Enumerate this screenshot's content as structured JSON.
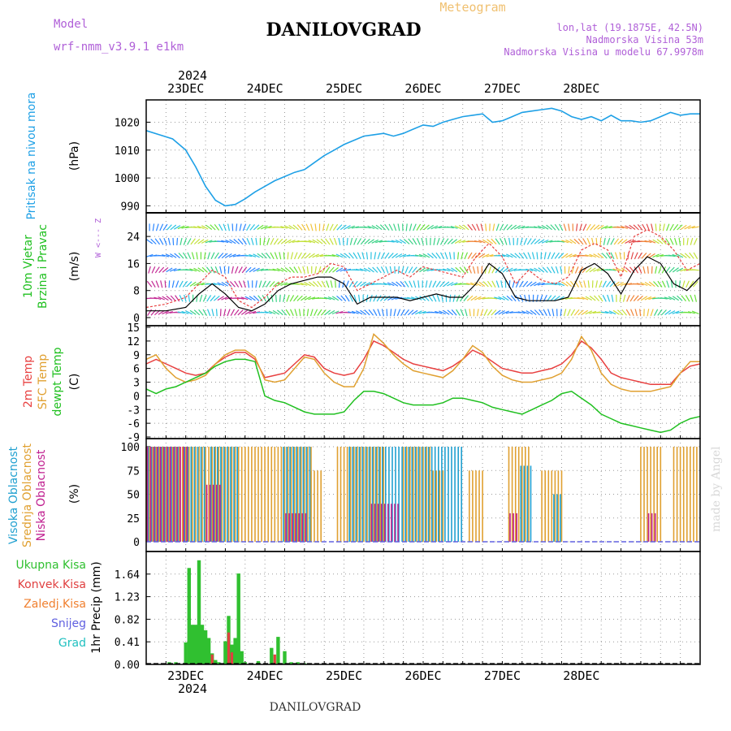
{
  "header": {
    "model_label": "Model",
    "model_name": "wrf-nmm_v3.9.1  e1km",
    "title": "DANILOVGRAD",
    "meteogram_label": "Meteogram",
    "lonlat": "lon,lat (19.1875E, 42.5N)",
    "elevation": "Nadmorska Visina 53m",
    "model_elevation": "Nadmorska Visina u modelu 67.9978m"
  },
  "footer": {
    "station": "DANILOVGRAD",
    "watermark": "made by Angel"
  },
  "time_axis": {
    "year": "2024",
    "dates": [
      "23DEC",
      "24DEC",
      "25DEC",
      "26DEC",
      "27DEC",
      "28DEC"
    ],
    "hour_range": [
      -12,
      156
    ]
  },
  "colors": {
    "pressure": "#1ea0e6",
    "t2m": "#e84040",
    "sfc": "#e0a030",
    "dew": "#20c020",
    "high_cloud": "#20a0d0",
    "mid_cloud": "#e0a030",
    "low_cloud": "#c02090",
    "precip_total": "#30c030",
    "precip_conv": "#e04040",
    "precip_frz": "#f08030",
    "snow": "#6060e0",
    "grad": "#20c0c0",
    "purple_text": "#b060d8",
    "orange_text": "#f0c070"
  },
  "chart_data": [
    {
      "type": "line",
      "panel": "pressure",
      "ylabel": "Pritisak na nivou mora",
      "unit": "(hPa)",
      "yticks": [
        990,
        1000,
        1010,
        1020
      ],
      "ylim": [
        987.5,
        1028
      ],
      "x": [
        -12,
        -8,
        -4,
        0,
        3,
        6,
        9,
        12,
        15,
        18,
        21,
        24,
        27,
        30,
        33,
        36,
        39,
        42,
        45,
        48,
        51,
        54,
        57,
        60,
        63,
        66,
        69,
        72,
        75,
        78,
        81,
        84,
        87,
        90,
        93,
        96,
        99,
        102,
        105,
        108,
        111,
        114,
        117,
        120,
        123,
        126,
        129,
        132,
        135,
        138,
        141,
        144,
        147,
        150,
        153,
        156
      ],
      "y": [
        1017,
        1015.5,
        1014,
        1010,
        1004,
        997,
        992,
        990,
        990.5,
        992.5,
        995,
        997,
        999,
        1000.5,
        1002,
        1003,
        1005.5,
        1008,
        1010,
        1012,
        1013.5,
        1015,
        1015.5,
        1016,
        1015,
        1016,
        1017.5,
        1019,
        1018.5,
        1020,
        1021,
        1022,
        1022.5,
        1023,
        1020,
        1020.5,
        1022,
        1023.5,
        1024,
        1024.5,
        1025,
        1024,
        1022,
        1021,
        1022,
        1020.5,
        1022.5,
        1020.5,
        1020.5,
        1020,
        1020.5,
        1022,
        1023.5,
        1022.5,
        1023,
        1023
      ]
    },
    {
      "type": "line",
      "panel": "wind",
      "ylabel": "10m Vjetar Brzina i Pravac",
      "unit": "(m/s)",
      "compass": "W <--- Z",
      "yticks": [
        0,
        8,
        16,
        24
      ],
      "ylim": [
        0,
        31
      ],
      "x": [
        -12,
        -6,
        0,
        4,
        8,
        12,
        16,
        20,
        24,
        28,
        32,
        36,
        40,
        44,
        48,
        52,
        56,
        60,
        64,
        68,
        72,
        76,
        80,
        84,
        88,
        92,
        96,
        100,
        104,
        108,
        112,
        116,
        120,
        124,
        128,
        132,
        136,
        140,
        144,
        148,
        152,
        156
      ],
      "gust": [
        3,
        4,
        6,
        10,
        14,
        12,
        5,
        3,
        6,
        10,
        12,
        12,
        13,
        16,
        15,
        8,
        10,
        12,
        14,
        12,
        15,
        14,
        13,
        12,
        18,
        22,
        18,
        10,
        14,
        11,
        10,
        12,
        20,
        22,
        20,
        12,
        24,
        26,
        24,
        20,
        14,
        16
      ],
      "speed": [
        2,
        2,
        3,
        7,
        10,
        7,
        3,
        2,
        4,
        8,
        10,
        11,
        12,
        12,
        10,
        4,
        6,
        6,
        6,
        5,
        6,
        7,
        6,
        6,
        10,
        16,
        13,
        6,
        5,
        5,
        5,
        6,
        14,
        16,
        13,
        7,
        14,
        18,
        16,
        10,
        8,
        12
      ]
    },
    {
      "type": "line",
      "panel": "temperature",
      "ylabel": "2m Temp / SFC Temp / dewpt Temp",
      "unit": "(C)",
      "yticks": [
        -9,
        -6,
        -3,
        0,
        3,
        6,
        9,
        12,
        15
      ],
      "ylim": [
        -9,
        15
      ],
      "x": [
        -12,
        -9,
        -6,
        -3,
        0,
        3,
        6,
        9,
        12,
        15,
        18,
        21,
        24,
        27,
        30,
        33,
        36,
        39,
        42,
        45,
        48,
        51,
        54,
        57,
        60,
        63,
        66,
        69,
        72,
        75,
        78,
        81,
        84,
        87,
        90,
        93,
        96,
        99,
        102,
        105,
        108,
        111,
        114,
        117,
        120,
        123,
        126,
        129,
        132,
        135,
        138,
        141,
        144,
        147,
        150,
        153,
        156
      ],
      "series": [
        {
          "name": "2m Temp",
          "values": [
            7,
            8,
            7,
            6,
            5,
            4.5,
            5,
            7,
            8.5,
            9.5,
            9.5,
            8,
            4,
            4.5,
            5,
            7,
            9,
            8.5,
            6,
            5,
            4.5,
            5,
            8,
            12,
            11,
            9.5,
            8,
            7,
            6.5,
            6,
            5.5,
            6.5,
            8,
            10,
            9,
            7.5,
            6,
            5.5,
            5,
            5,
            5.5,
            6,
            7,
            9,
            12,
            10.5,
            8,
            5,
            4,
            3.5,
            3,
            2.5,
            2.5,
            2.5,
            5,
            6.5,
            7
          ]
        },
        {
          "name": "SFC Temp",
          "values": [
            8,
            9,
            6,
            4,
            3,
            3.5,
            4.5,
            7,
            9,
            10,
            10,
            8.5,
            3.5,
            3,
            3.5,
            6,
            8.5,
            8,
            5,
            3,
            2,
            2,
            6,
            13.5,
            11.5,
            9,
            7,
            5.5,
            5,
            4.5,
            4,
            5.5,
            8,
            11,
            9.5,
            6.5,
            4.5,
            3.5,
            3,
            3,
            3.5,
            4,
            5,
            8,
            13,
            10,
            5,
            2.5,
            1.5,
            1,
            1,
            1,
            1.5,
            2,
            5,
            7.5,
            7.5
          ]
        },
        {
          "name": "dewpt Temp",
          "values": [
            1.5,
            0.5,
            1.5,
            2,
            3,
            4,
            5,
            6.5,
            7.5,
            8,
            8,
            7.5,
            0,
            -1,
            -1.5,
            -2.5,
            -3.5,
            -4,
            -4,
            -4,
            -3.5,
            -1,
            1,
            1,
            0.5,
            -0.5,
            -1.5,
            -2,
            -2,
            -2,
            -1.5,
            -0.5,
            -0.5,
            -1,
            -1.5,
            -2.5,
            -3,
            -3.5,
            -4,
            -3,
            -2,
            -1,
            0.5,
            1,
            -0.5,
            -2,
            -4,
            -5,
            -6,
            -6.5,
            -7,
            -7.5,
            -8,
            -7.5,
            -6,
            -5,
            -4.5
          ]
        }
      ]
    },
    {
      "type": "bar",
      "panel": "cloud",
      "ylabel": "Visoka Oblacnost / Srednja Oblacnost / Niska Oblacnost",
      "unit": "(%)",
      "yticks": [
        0,
        25,
        50,
        75,
        100
      ],
      "ylim": [
        0,
        100
      ],
      "x_range": [
        -12,
        156
      ],
      "series": [
        {
          "name": "Visoka Oblacnost",
          "segments": [
            [
              -11,
              -2,
              100
            ],
            [
              0,
              6,
              100
            ],
            [
              8,
              16,
              100
            ],
            [
              30,
              38,
              100
            ],
            [
              50,
              84,
              100
            ],
            [
              102,
              105,
              80
            ],
            [
              112,
              114,
              50
            ]
          ]
        },
        {
          "name": "Srednja Oblacnost",
          "segments": [
            [
              -12,
              38,
              100
            ],
            [
              38,
              41,
              75
            ],
            [
              46,
              60,
              100
            ],
            [
              66,
              74,
              100
            ],
            [
              74,
              78,
              75
            ],
            [
              86,
              90,
              75
            ],
            [
              98,
              104,
              100
            ],
            [
              108,
              114,
              75
            ],
            [
              138,
              144,
              100
            ],
            [
              148,
              155,
              100
            ]
          ]
        },
        {
          "name": "Niska Oblacnost",
          "segments": [
            [
              -12,
              0,
              100
            ],
            [
              6,
              10,
              60
            ],
            [
              30,
              36,
              30
            ],
            [
              56,
              64,
              40
            ],
            [
              98,
              100,
              30
            ],
            [
              140,
              142,
              30
            ]
          ]
        }
      ]
    },
    {
      "type": "bar",
      "panel": "precip",
      "ylabel": "1hr Precip",
      "unit": "(mm)",
      "legend": [
        "Ukupna Kisa",
        "Konvek.Kisa",
        "Zaledj.Kisa",
        "Snijeg",
        "Grad"
      ],
      "yticks": [
        0,
        0.41,
        0.82,
        1.23,
        1.64
      ],
      "ylim": [
        0,
        2.05
      ],
      "x": [
        -5,
        -3,
        0,
        1,
        2,
        3,
        4,
        5,
        6,
        7,
        8,
        9,
        10,
        12,
        13,
        14,
        15,
        16,
        17,
        18,
        20,
        22,
        24,
        26,
        28,
        30,
        32,
        34,
        36
      ],
      "values": [
        0.04,
        0.04,
        0.4,
        1.75,
        0.72,
        0.72,
        1.89,
        0.72,
        0.62,
        0.48,
        0.2,
        0.08,
        0.04,
        0.42,
        0.88,
        0.36,
        0.48,
        1.65,
        0.24,
        0.04,
        0.02,
        0.06,
        0.02,
        0.3,
        0.5,
        0.24,
        0.04,
        0.04,
        0.02
      ],
      "convective": [
        [
          8,
          0.18
        ],
        [
          13,
          0.58
        ],
        [
          14,
          0.22
        ],
        [
          27,
          0.18
        ]
      ]
    }
  ]
}
